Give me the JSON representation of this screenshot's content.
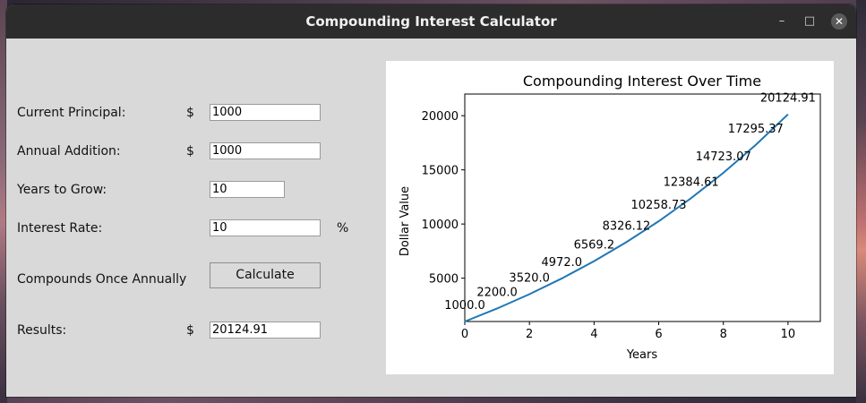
{
  "window": {
    "title": "Compounding Interest Calculator"
  },
  "titlebar": {
    "minimize_glyph": "–",
    "maximize_glyph": "□",
    "close_glyph": "✕"
  },
  "form": {
    "principal_label": "Current Principal:",
    "principal_currency": "$",
    "principal_value": "1000",
    "addition_label": "Annual Addition:",
    "addition_currency": "$",
    "addition_value": "1000",
    "years_label": "Years to Grow:",
    "years_value": "10",
    "rate_label": "Interest Rate:",
    "rate_value": "10",
    "rate_unit": "%",
    "compound_label": "Compounds Once Annually",
    "calculate_label": "Calculate",
    "results_label": "Results:",
    "results_currency": "$",
    "results_value": "20124.91"
  },
  "icons": {
    "minimize": "minimize-icon",
    "maximize": "maximize-icon",
    "close": "close-icon"
  },
  "colors": {
    "titlebar": "#2c2c2c",
    "window_bg": "#d9d9d9",
    "line": "#1f77b4"
  },
  "chart_data": {
    "type": "line",
    "title": "Compounding Interest Over Time",
    "xlabel": "Years",
    "ylabel": "Dollar Value",
    "xlim": [
      0,
      11
    ],
    "ylim": [
      1000,
      22000
    ],
    "xticks": [
      0,
      2,
      4,
      6,
      8,
      10
    ],
    "yticks": [
      5000,
      10000,
      15000,
      20000
    ],
    "x": [
      0,
      1,
      2,
      3,
      4,
      5,
      6,
      7,
      8,
      9,
      10
    ],
    "values": [
      1000.0,
      2200.0,
      3520.0,
      4972.0,
      6569.2,
      8326.12,
      10258.73,
      12384.61,
      14723.07,
      17295.37,
      20124.91
    ],
    "point_labels": [
      "1000.0",
      "2200.0",
      "3520.0",
      "4972.0",
      "6569.2",
      "8326.12",
      "10258.73",
      "12384.61",
      "14723.07",
      "17295.37",
      "20124.91"
    ],
    "grid": false
  }
}
